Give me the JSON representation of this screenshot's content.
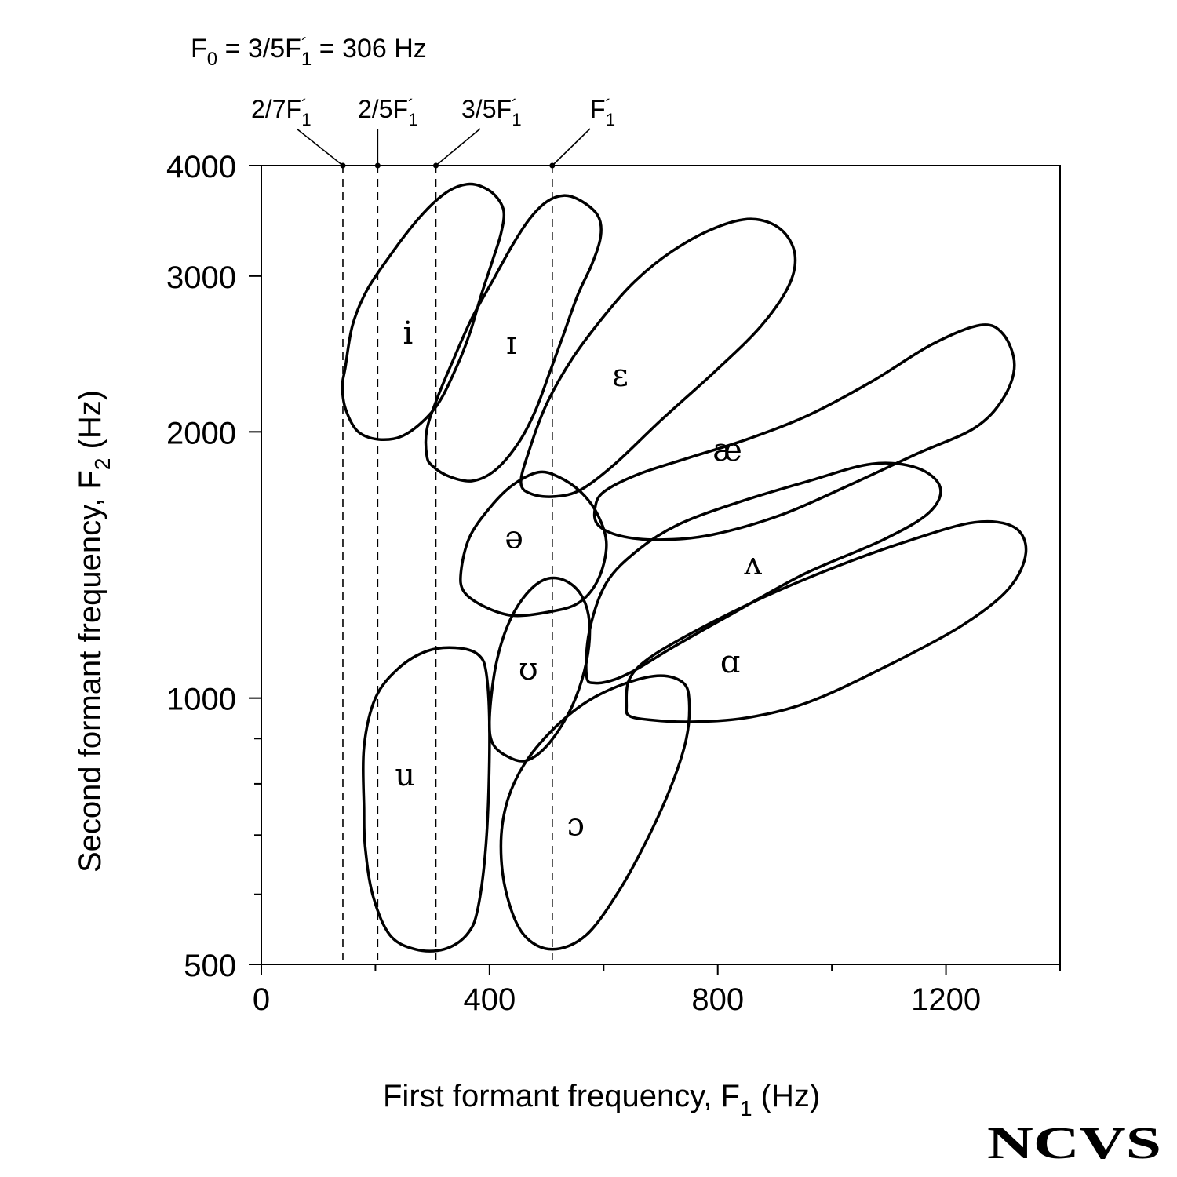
{
  "chart_data": {
    "type": "scatter",
    "subtype": "vowel formant region ellipses",
    "title_main": "F",
    "title_sub0": "0",
    "title_mid": " = 3/5F",
    "title_sup": "´",
    "title_sub1": "1",
    "title_end": " = 306 Hz",
    "xlabel": "First formant frequency, F",
    "xlabel_sub": "1",
    "xlabel_end": " (Hz)",
    "ylabel": "Second formant frequency, F",
    "ylabel_sub": "2",
    "ylabel_end": " (Hz)",
    "xlim": [
      0,
      1400
    ],
    "ylim": [
      500,
      4000
    ],
    "y_scale": "log",
    "x_ticks": [
      0,
      400,
      800,
      1200
    ],
    "x_minor_ticks": [
      200,
      600,
      1000,
      1400
    ],
    "x_tick_labels": [
      "0",
      "400",
      "800",
      "1200"
    ],
    "y_ticks": [
      500,
      1000,
      2000,
      3000,
      4000
    ],
    "y_tick_labels": [
      "500",
      "1000",
      "2000",
      "3000",
      "4000"
    ],
    "y_minor_ticks": [
      600,
      700,
      800,
      900
    ],
    "harmonic_lines": [
      {
        "label": "2/7F",
        "sub": "1",
        "x": 143
      },
      {
        "label": "2/5F",
        "sub": "1",
        "x": 204
      },
      {
        "label": "3/5F",
        "sub": "1",
        "x": 306
      },
      {
        "label": "F",
        "sub": "1",
        "x": 510
      }
    ],
    "vowels": [
      {
        "symbol": "i",
        "label_at": [
          257,
          2590
        ],
        "outline": [
          [
            147,
            2360
          ],
          [
            160,
            2640
          ],
          [
            185,
            2890
          ],
          [
            225,
            3160
          ],
          [
            265,
            3420
          ],
          [
            300,
            3620
          ],
          [
            330,
            3750
          ],
          [
            360,
            3810
          ],
          [
            385,
            3790
          ],
          [
            410,
            3700
          ],
          [
            425,
            3550
          ],
          [
            420,
            3350
          ],
          [
            405,
            3120
          ],
          [
            385,
            2850
          ],
          [
            365,
            2580
          ],
          [
            340,
            2350
          ],
          [
            305,
            2130
          ],
          [
            255,
            1990
          ],
          [
            210,
            1960
          ],
          [
            170,
            2000
          ],
          [
            148,
            2120
          ],
          [
            142,
            2250
          ],
          [
            147,
            2360
          ]
        ]
      },
      {
        "symbol": "ɪ",
        "label_at": [
          438,
          2520
        ],
        "outline": [
          [
            290,
            1880
          ],
          [
            290,
            2010
          ],
          [
            308,
            2180
          ],
          [
            335,
            2400
          ],
          [
            368,
            2680
          ],
          [
            405,
            2960
          ],
          [
            440,
            3250
          ],
          [
            470,
            3480
          ],
          [
            500,
            3640
          ],
          [
            530,
            3700
          ],
          [
            560,
            3650
          ],
          [
            590,
            3510
          ],
          [
            595,
            3330
          ],
          [
            580,
            3100
          ],
          [
            555,
            2860
          ],
          [
            530,
            2580
          ],
          [
            505,
            2330
          ],
          [
            480,
            2110
          ],
          [
            450,
            1940
          ],
          [
            410,
            1810
          ],
          [
            370,
            1760
          ],
          [
            330,
            1780
          ],
          [
            300,
            1830
          ],
          [
            290,
            1880
          ]
        ]
      },
      {
        "symbol": "ɛ",
        "label_at": [
          629,
          2320
        ],
        "outline": [
          [
            455,
            1750
          ],
          [
            470,
            1910
          ],
          [
            500,
            2150
          ],
          [
            545,
            2420
          ],
          [
            600,
            2700
          ],
          [
            655,
            2960
          ],
          [
            720,
            3200
          ],
          [
            795,
            3400
          ],
          [
            860,
            3480
          ],
          [
            910,
            3390
          ],
          [
            935,
            3180
          ],
          [
            925,
            2930
          ],
          [
            875,
            2630
          ],
          [
            795,
            2340
          ],
          [
            700,
            2060
          ],
          [
            620,
            1840
          ],
          [
            560,
            1720
          ],
          [
            515,
            1690
          ],
          [
            475,
            1700
          ],
          [
            455,
            1750
          ]
        ]
      },
      {
        "symbol": "æ",
        "label_at": [
          817,
          1910
        ],
        "outline": [
          [
            585,
            1640
          ],
          [
            600,
            1710
          ],
          [
            660,
            1790
          ],
          [
            750,
            1870
          ],
          [
            850,
            1960
          ],
          [
            960,
            2090
          ],
          [
            1070,
            2280
          ],
          [
            1175,
            2510
          ],
          [
            1260,
            2640
          ],
          [
            1300,
            2580
          ],
          [
            1320,
            2380
          ],
          [
            1300,
            2180
          ],
          [
            1250,
            2020
          ],
          [
            1150,
            1890
          ],
          [
            1030,
            1740
          ],
          [
            910,
            1610
          ],
          [
            790,
            1530
          ],
          [
            700,
            1510
          ],
          [
            630,
            1525
          ],
          [
            590,
            1570
          ],
          [
            585,
            1640
          ]
        ]
      },
      {
        "symbol": "ə",
        "label_at": [
          443,
          1520
        ],
        "outline": [
          [
            350,
            1390
          ],
          [
            365,
            1520
          ],
          [
            400,
            1640
          ],
          [
            440,
            1740
          ],
          [
            485,
            1800
          ],
          [
            520,
            1780
          ],
          [
            560,
            1710
          ],
          [
            590,
            1610
          ],
          [
            605,
            1490
          ],
          [
            590,
            1360
          ],
          [
            555,
            1280
          ],
          [
            500,
            1250
          ],
          [
            440,
            1240
          ],
          [
            390,
            1270
          ],
          [
            355,
            1320
          ],
          [
            350,
            1390
          ]
        ]
      },
      {
        "symbol": "ʌ",
        "label_at": [
          862,
          1420
        ],
        "outline": [
          [
            570,
            1060
          ],
          [
            575,
            1190
          ],
          [
            605,
            1350
          ],
          [
            660,
            1470
          ],
          [
            730,
            1570
          ],
          [
            830,
            1660
          ],
          [
            960,
            1760
          ],
          [
            1070,
            1840
          ],
          [
            1150,
            1820
          ],
          [
            1190,
            1730
          ],
          [
            1170,
            1620
          ],
          [
            1090,
            1510
          ],
          [
            950,
            1380
          ],
          [
            820,
            1240
          ],
          [
            720,
            1140
          ],
          [
            660,
            1080
          ],
          [
            620,
            1050
          ],
          [
            585,
            1040
          ],
          [
            570,
            1060
          ]
        ]
      },
      {
        "symbol": "ɑ",
        "label_at": [
          822,
          1100
        ],
        "outline": [
          [
            640,
            980
          ],
          [
            645,
            1050
          ],
          [
            680,
            1110
          ],
          [
            760,
            1190
          ],
          [
            880,
            1300
          ],
          [
            1010,
            1410
          ],
          [
            1140,
            1510
          ],
          [
            1250,
            1580
          ],
          [
            1320,
            1560
          ],
          [
            1340,
            1460
          ],
          [
            1310,
            1330
          ],
          [
            1230,
            1210
          ],
          [
            1100,
            1090
          ],
          [
            960,
            990
          ],
          [
            850,
            950
          ],
          [
            750,
            940
          ],
          [
            680,
            945
          ],
          [
            645,
            955
          ],
          [
            640,
            980
          ]
        ]
      },
      {
        "symbol": "ʊ",
        "label_at": [
          468,
          1080
        ],
        "outline": [
          [
            400,
            950
          ],
          [
            410,
            1080
          ],
          [
            430,
            1200
          ],
          [
            460,
            1300
          ],
          [
            495,
            1360
          ],
          [
            530,
            1360
          ],
          [
            560,
            1310
          ],
          [
            575,
            1220
          ],
          [
            570,
            1100
          ],
          [
            545,
            980
          ],
          [
            505,
            890
          ],
          [
            465,
            850
          ],
          [
            430,
            860
          ],
          [
            405,
            890
          ],
          [
            400,
            950
          ]
        ]
      },
      {
        "symbol": "u",
        "label_at": [
          252,
          820
        ],
        "outline": [
          [
            180,
            750
          ],
          [
            180,
            880
          ],
          [
            200,
            1000
          ],
          [
            240,
            1080
          ],
          [
            290,
            1130
          ],
          [
            340,
            1140
          ],
          [
            380,
            1120
          ],
          [
            395,
            1060
          ],
          [
            400,
            900
          ],
          [
            395,
            700
          ],
          [
            380,
            580
          ],
          [
            360,
            540
          ],
          [
            320,
            520
          ],
          [
            270,
            520
          ],
          [
            225,
            540
          ],
          [
            195,
            600
          ],
          [
            182,
            680
          ],
          [
            180,
            750
          ]
        ]
      },
      {
        "symbol": "ɔ",
        "label_at": [
          551,
          720
        ],
        "outline": [
          [
            420,
            680
          ],
          [
            430,
            760
          ],
          [
            460,
            840
          ],
          [
            510,
            920
          ],
          [
            570,
            990
          ],
          [
            640,
            1040
          ],
          [
            700,
            1060
          ],
          [
            740,
            1040
          ],
          [
            750,
            990
          ],
          [
            745,
            900
          ],
          [
            720,
            800
          ],
          [
            680,
            700
          ],
          [
            630,
            610
          ],
          [
            570,
            540
          ],
          [
            510,
            520
          ],
          [
            460,
            540
          ],
          [
            430,
            600
          ],
          [
            420,
            680
          ]
        ]
      }
    ]
  },
  "logo": {
    "text": "NCVS"
  }
}
